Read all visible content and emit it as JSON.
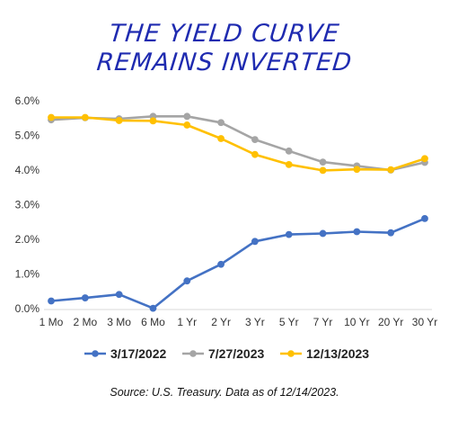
{
  "title_lines": [
    "THE YIELD CURVE",
    "REMAINS INVERTED"
  ],
  "source": "Source: U.S. Treasury. Data as of 12/14/2023.",
  "chart_data": {
    "type": "line",
    "title": "THE YIELD CURVE REMAINS INVERTED",
    "xlabel": "",
    "ylabel": "",
    "ylim": [
      0,
      6
    ],
    "y_ticks": [
      "0.0%",
      "1.0%",
      "2.0%",
      "3.0%",
      "4.0%",
      "5.0%",
      "6.0%"
    ],
    "grid": false,
    "legend_position": "bottom",
    "categories": [
      "1 Mo",
      "2 Mo",
      "3 Mo",
      "6 Mo",
      "1 Yr",
      "2 Yr",
      "3 Yr",
      "5 Yr",
      "7 Yr",
      "10 Yr",
      "20 Yr",
      "30 Yr"
    ],
    "series": [
      {
        "name": "3/17/2022",
        "color": "#4472c4",
        "values": [
          0.22,
          0.31,
          0.41,
          0.01,
          0.8,
          1.28,
          1.94,
          2.14,
          2.17,
          2.22,
          2.19,
          2.6
        ]
      },
      {
        "name": "7/27/2023",
        "color": "#a5a5a5",
        "values": [
          5.45,
          5.51,
          5.48,
          5.55,
          5.55,
          5.37,
          4.88,
          4.55,
          4.23,
          4.12,
          4.0,
          4.22
        ]
      },
      {
        "name": "12/13/2023",
        "color": "#ffc000",
        "values": [
          5.52,
          5.52,
          5.43,
          5.42,
          5.3,
          4.91,
          4.45,
          4.16,
          3.99,
          4.02,
          4.01,
          4.33
        ]
      }
    ]
  }
}
